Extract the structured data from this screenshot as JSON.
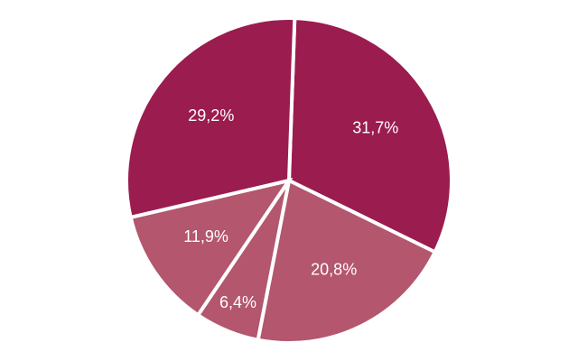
{
  "chart_data": {
    "type": "pie",
    "title": "",
    "slices": [
      {
        "label": "31,7%",
        "value": 31.7,
        "color": "#9b1c4f"
      },
      {
        "label": "20,8%",
        "value": 20.8,
        "color": "#b3566e"
      },
      {
        "label": "6,4%",
        "value": 6.4,
        "color": "#b3566e"
      },
      {
        "label": "11,9%",
        "value": 11.9,
        "color": "#b3566e"
      },
      {
        "label": "29,2%",
        "value": 29.2,
        "color": "#9b1c4f"
      }
    ],
    "legend": "none",
    "slice_border_color": "#ffffff"
  }
}
